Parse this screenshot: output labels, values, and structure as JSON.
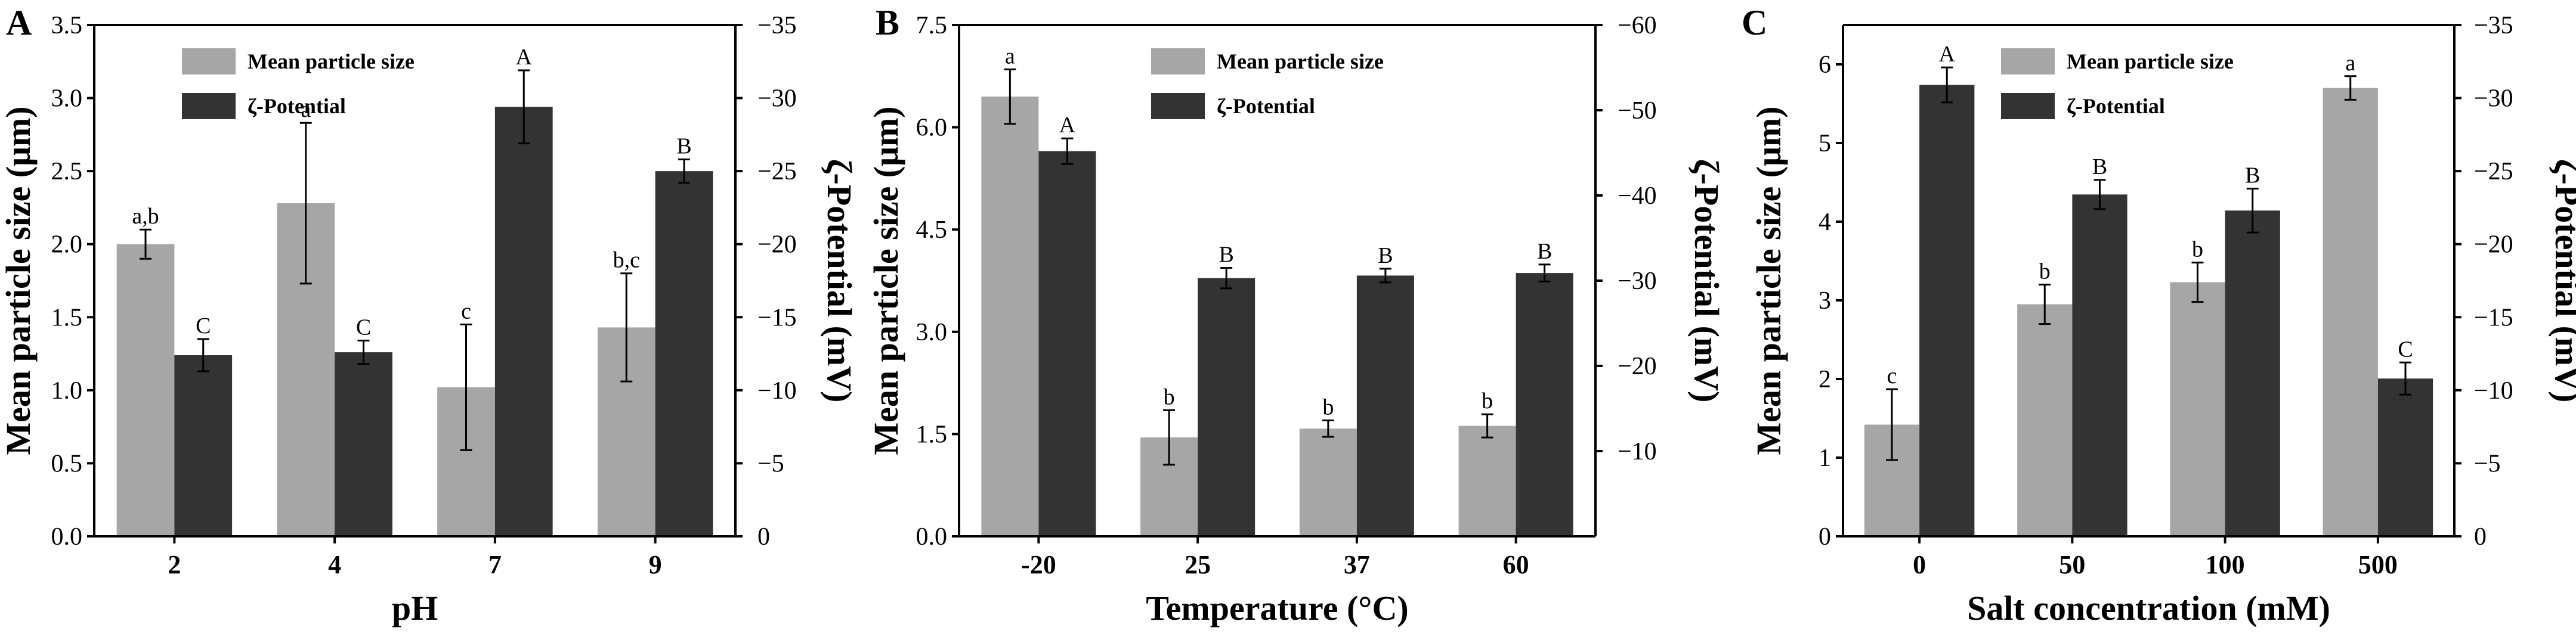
{
  "colors": {
    "particle_size": "#a6a6a6",
    "zeta_potential": "#333333",
    "axis": "#000000"
  },
  "chart_data": [
    {
      "panel": "A",
      "type": "bar",
      "xlabel": "pH",
      "ylabel_left": "Mean particle size (μm)",
      "ylabel_right": "ζ-Potential (mV)",
      "categories": [
        "2",
        "4",
        "7",
        "9"
      ],
      "ylim_left": [
        0,
        3.5
      ],
      "ylim_right": [
        0,
        -35
      ],
      "yticks_left": [
        0.0,
        0.5,
        1.0,
        1.5,
        2.0,
        2.5,
        3.0,
        3.5
      ],
      "yticks_left_labels": [
        "0.0",
        "0.5",
        "1.0",
        "1.5",
        "2.0",
        "2.5",
        "3.0",
        "3.5"
      ],
      "yticks_right": [
        0,
        -5,
        -10,
        -15,
        -20,
        -25,
        -30,
        -35
      ],
      "yticks_right_labels": [
        "0",
        "−5",
        "−10",
        "−15",
        "−20",
        "−25",
        "−30",
        "−35"
      ],
      "legend": [
        "Mean particle size",
        "ζ-Potential"
      ],
      "legend_position": "top-left",
      "series": [
        {
          "name": "Mean particle size",
          "axis": "left",
          "values": [
            2.0,
            2.28,
            1.02,
            1.43
          ],
          "errors": [
            0.1,
            0.55,
            0.43,
            0.37
          ],
          "labels": [
            "a,b",
            "a",
            "c",
            "b,c"
          ]
        },
        {
          "name": "ζ-Potential",
          "axis": "right",
          "values": [
            -12.4,
            -12.6,
            -29.4,
            -25.0
          ],
          "errors": [
            1.1,
            0.8,
            2.5,
            0.8
          ],
          "labels": [
            "C",
            "C",
            "A",
            "B"
          ]
        }
      ]
    },
    {
      "panel": "B",
      "type": "bar",
      "xlabel": "Temperature (°C)",
      "ylabel_left": "Mean particle size (μm)",
      "ylabel_right": "ζ-Potential (mV)",
      "categories": [
        "-20",
        "25",
        "37",
        "60"
      ],
      "ylim_left": [
        0,
        7.5
      ],
      "ylim_right": [
        0,
        -60
      ],
      "yticks_left": [
        0.0,
        1.5,
        3.0,
        4.5,
        6.0,
        7.5
      ],
      "yticks_left_labels": [
        "0.0",
        "1.5",
        "3.0",
        "4.5",
        "6.0",
        "7.5"
      ],
      "yticks_right": [
        -10,
        -20,
        -30,
        -40,
        -50,
        -60
      ],
      "yticks_right_labels": [
        "−10",
        "−20",
        "−30",
        "−40",
        "−50",
        "−60"
      ],
      "legend": [
        "Mean particle size",
        "ζ-Potential"
      ],
      "legend_position": "top-right",
      "series": [
        {
          "name": "Mean particle size",
          "axis": "left",
          "values": [
            6.45,
            1.45,
            1.58,
            1.62
          ],
          "errors": [
            0.4,
            0.4,
            0.12,
            0.17
          ],
          "labels": [
            "a",
            "b",
            "b",
            "b"
          ]
        },
        {
          "name": "ζ-Potential",
          "axis": "right",
          "values": [
            -45.2,
            -30.3,
            -30.6,
            -30.9
          ],
          "errors": [
            1.5,
            1.2,
            0.8,
            1.0
          ],
          "labels": [
            "A",
            "B",
            "B",
            "B"
          ]
        }
      ]
    },
    {
      "panel": "C",
      "type": "bar",
      "xlabel": "Salt concentration (mM)",
      "ylabel_left": "Mean particle size (μm)",
      "ylabel_right": "ζ-Potential (mV)",
      "categories": [
        "0",
        "50",
        "100",
        "500"
      ],
      "ylim_left": [
        0,
        6.5
      ],
      "ylim_right": [
        0,
        -35
      ],
      "yticks_left": [
        0,
        1,
        2,
        3,
        4,
        5,
        6
      ],
      "yticks_left_labels": [
        "0",
        "1",
        "2",
        "3",
        "4",
        "5",
        "6"
      ],
      "yticks_right": [
        0,
        -5,
        -10,
        -15,
        -20,
        -25,
        -30,
        -35
      ],
      "yticks_right_labels": [
        "0",
        "−5",
        "−10",
        "−15",
        "−20",
        "−25",
        "−30",
        "−35"
      ],
      "legend": [
        "Mean particle size",
        "ζ-Potential"
      ],
      "legend_position": "top-right",
      "series": [
        {
          "name": "Mean particle size",
          "axis": "left",
          "values": [
            1.42,
            2.95,
            3.23,
            5.7
          ],
          "errors": [
            0.45,
            0.25,
            0.25,
            0.15
          ],
          "labels": [
            "c",
            "b",
            "b",
            "a"
          ]
        },
        {
          "name": "ζ-Potential",
          "axis": "right",
          "values": [
            -30.9,
            -23.4,
            -22.3,
            -10.8
          ],
          "errors": [
            1.2,
            1.0,
            1.5,
            1.1
          ],
          "labels": [
            "A",
            "B",
            "B",
            "C"
          ]
        }
      ]
    }
  ]
}
